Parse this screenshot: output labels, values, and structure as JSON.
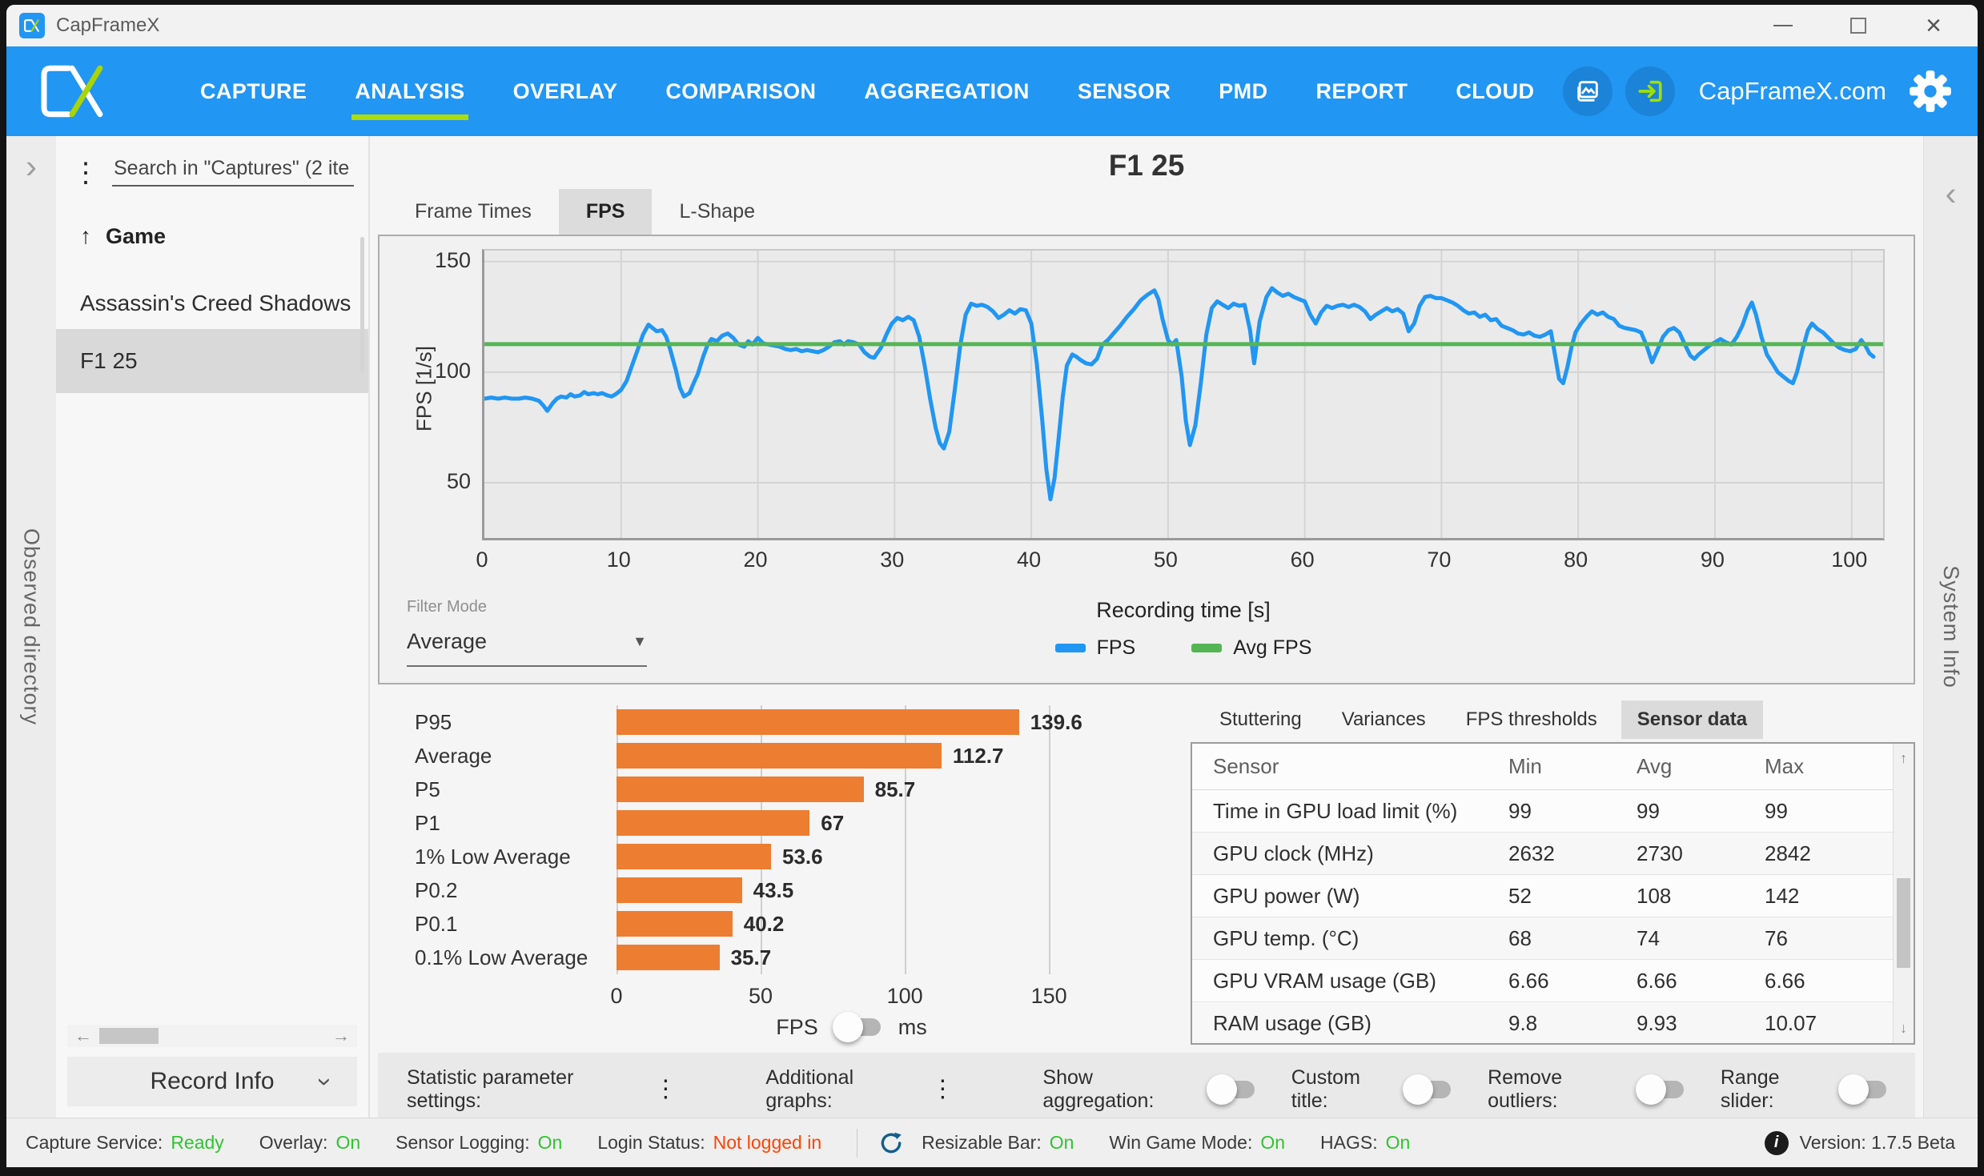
{
  "window": {
    "title": "CapFrameX"
  },
  "nav": {
    "items": [
      "CAPTURE",
      "ANALYSIS",
      "OVERLAY",
      "COMPARISON",
      "AGGREGATION",
      "SENSOR",
      "PMD",
      "REPORT",
      "CLOUD"
    ],
    "active_item": "ANALYSIS",
    "site_label": "CapFrameX.com",
    "bar_color": "#2196F3",
    "accent_green": "#AEDC0A"
  },
  "left_rail": {
    "label": "Observed directory",
    "expander": "›"
  },
  "right_rail": {
    "label": "System Info",
    "collapser": "‹"
  },
  "sidebar": {
    "menu_icon": "⋮",
    "search_placeholder": "Search in \"Captures\" (2 ite",
    "sort_header": {
      "arrow": "↑",
      "label": "Game"
    },
    "items": [
      {
        "label": "Assassin's Creed Shadows",
        "selected": false
      },
      {
        "label": "F1 25",
        "selected": true
      }
    ],
    "hscroll": {
      "left_arrow": "←",
      "right_arrow": "→"
    },
    "record_info_label": "Record Info"
  },
  "main": {
    "title": "F1 25",
    "chart_tabs": [
      {
        "label": "Frame Times",
        "active": false
      },
      {
        "label": "FPS",
        "active": true
      },
      {
        "label": "L-Shape",
        "active": false
      }
    ],
    "filter_mode": {
      "label": "Filter Mode",
      "value": "Average",
      "arrow": "▼"
    }
  },
  "chart_data": [
    {
      "type": "line",
      "title": "F1 25",
      "xlabel": "Recording time [s]",
      "ylabel": "FPS [1/s]",
      "xlim": [
        0,
        102.3
      ],
      "ylim": [
        25,
        155
      ],
      "xticks": [
        0,
        10,
        20,
        30,
        40,
        50,
        60,
        70,
        80,
        90,
        100
      ],
      "yticks": [
        50,
        100,
        150
      ],
      "grid": true,
      "legend_position": "bottom",
      "series": [
        {
          "name": "FPS",
          "color": "#2196F3",
          "x": [
            0,
            0.5,
            1,
            1.5,
            2,
            2.5,
            3,
            3.5,
            4,
            4.3,
            4.6,
            5,
            5.3,
            5.6,
            6,
            6.3,
            6.6,
            7,
            7.3,
            7.6,
            8,
            8.3,
            8.6,
            9,
            9.3,
            9.6,
            10,
            10.4,
            10.8,
            11.2,
            11.6,
            12,
            12.3,
            12.6,
            13,
            13.3,
            13.6,
            14,
            14.3,
            14.6,
            15,
            15.3,
            15.6,
            16,
            16.3,
            16.6,
            17,
            17.4,
            17.8,
            18.2,
            18.6,
            19,
            19.3,
            19.6,
            20,
            20.4,
            20.8,
            21.2,
            21.6,
            22,
            22.4,
            22.8,
            23.2,
            23.6,
            24,
            24.4,
            24.8,
            25.2,
            25.6,
            26,
            26.3,
            26.6,
            27,
            27.4,
            27.8,
            28.2,
            28.5,
            29,
            29.4,
            29.8,
            30.2,
            30.6,
            31,
            31.4,
            31.8,
            32.2,
            32.6,
            33,
            33.3,
            33.6,
            34,
            34.4,
            34.8,
            35.2,
            35.6,
            36,
            36.4,
            36.8,
            37.2,
            37.6,
            38,
            38.4,
            38.8,
            39.2,
            39.6,
            40,
            40.4,
            40.8,
            41.1,
            41.4,
            41.7,
            42,
            42.3,
            42.6,
            43,
            43.3,
            43.6,
            44,
            44.4,
            44.8,
            45.2,
            45.6,
            46,
            46.5,
            47,
            47.5,
            48,
            48.5,
            49,
            49.3,
            49.6,
            50,
            50.3,
            50.6,
            51,
            51.3,
            51.6,
            52,
            52.4,
            52.8,
            53.2,
            53.6,
            54,
            54.4,
            54.8,
            55.2,
            55.6,
            56,
            56.3,
            56.7,
            57.2,
            57.6,
            58,
            58.4,
            58.8,
            59.2,
            59.6,
            60,
            60.4,
            60.8,
            61.2,
            61.6,
            62,
            62.4,
            62.8,
            63.2,
            63.6,
            64,
            64.4,
            64.8,
            65.2,
            65.6,
            66,
            66.4,
            66.8,
            67.2,
            67.6,
            68,
            68.4,
            68.8,
            69.2,
            69.6,
            70,
            70.4,
            70.8,
            71.2,
            71.6,
            72,
            72.4,
            72.8,
            73.2,
            73.6,
            74,
            74.4,
            74.8,
            75.2,
            75.6,
            76,
            76.4,
            76.8,
            77.2,
            77.6,
            78,
            78.3,
            78.6,
            78.9,
            79.2,
            79.5,
            79.8,
            80.2,
            80.6,
            81,
            81.4,
            81.8,
            82.2,
            82.6,
            83,
            83.4,
            83.8,
            84.2,
            84.6,
            85,
            85.4,
            85.8,
            86.2,
            86.6,
            87,
            87.4,
            87.8,
            88.2,
            88.5,
            88.8,
            89.2,
            89.6,
            90,
            90.4,
            90.8,
            91.2,
            91.6,
            92,
            92.4,
            92.7,
            93,
            93.4,
            93.8,
            94.2,
            94.6,
            95,
            95.4,
            95.7,
            96,
            96.4,
            96.8,
            97.1,
            97.5,
            97.9,
            98.3,
            98.7,
            99.1,
            99.5,
            99.9,
            100.3,
            100.7,
            101,
            101.3,
            101.6
          ],
          "y": [
            88,
            88.5,
            88,
            88.5,
            88,
            88,
            88.5,
            88,
            87,
            85,
            82.5,
            86,
            88,
            89,
            88.5,
            90,
            89,
            89.5,
            91,
            90,
            90.5,
            90,
            90.5,
            89.5,
            89,
            90,
            92,
            96,
            103,
            110,
            117,
            121.5,
            120,
            118.5,
            119,
            116,
            110,
            101,
            93,
            89,
            90.5,
            95,
            99,
            107,
            112,
            115,
            114,
            116.5,
            117.5,
            115.5,
            112.5,
            111.5,
            114,
            112.5,
            115.5,
            113,
            112.5,
            112,
            111.5,
            110.5,
            110,
            110.5,
            109.5,
            110,
            109.5,
            109,
            110,
            111.5,
            113.5,
            114,
            112.5,
            114,
            113.5,
            112.5,
            109,
            107,
            106.5,
            111,
            117,
            122,
            124.5,
            123.5,
            125,
            123.5,
            116,
            103,
            88,
            75,
            68,
            65.5,
            73,
            92,
            112,
            126,
            131,
            130,
            130.5,
            129.5,
            127.5,
            124.5,
            126,
            128,
            126.5,
            128.5,
            128,
            122,
            104,
            78,
            56,
            42.5,
            52,
            70,
            89,
            103,
            108,
            107,
            105.5,
            104,
            103.5,
            106,
            112.5,
            114.5,
            117.5,
            121,
            125,
            128.5,
            132.5,
            135,
            137,
            133,
            124,
            114.5,
            112.5,
            114.5,
            98,
            78,
            67,
            76,
            95,
            117,
            129,
            132,
            130.5,
            129,
            131,
            130,
            130.5,
            119,
            104,
            123,
            134,
            138,
            136,
            134.5,
            135.5,
            134,
            133,
            132,
            126,
            122,
            127,
            130,
            129,
            130,
            130.5,
            129.5,
            130.5,
            129.5,
            127.5,
            124,
            126,
            127.5,
            129,
            127.5,
            128.5,
            126.5,
            118.5,
            122,
            130,
            134,
            134.5,
            133.5,
            133.5,
            132.5,
            131.5,
            130,
            128,
            126.5,
            127,
            125,
            126,
            123.5,
            124,
            121,
            120,
            119,
            117.5,
            117,
            118,
            116.5,
            116,
            117,
            118.5,
            108,
            97,
            95,
            102,
            111,
            118,
            122,
            125,
            127.5,
            126,
            127,
            125,
            124,
            121,
            120,
            119.5,
            119,
            118,
            112,
            104.5,
            110,
            116,
            119,
            120,
            118,
            112.5,
            107.5,
            106,
            108,
            110,
            112,
            113.5,
            115,
            113.5,
            112.5,
            116,
            121,
            128,
            131.5,
            126,
            116,
            108,
            104,
            100,
            98,
            96,
            95,
            100,
            110,
            119,
            122,
            119.5,
            118,
            115.5,
            113,
            111,
            110,
            109.5,
            110.5,
            114.5,
            112,
            108.5,
            107
          ]
        },
        {
          "name": "Avg FPS",
          "color": "#55B555",
          "type": "hline",
          "value": 112.7
        }
      ]
    },
    {
      "type": "bar",
      "orientation": "horizontal",
      "categories": [
        "P95",
        "Average",
        "P5",
        "P1",
        "1% Low Average",
        "P0.2",
        "P0.1",
        "0.1% Low Average"
      ],
      "values": [
        139.6,
        112.7,
        85.7,
        67,
        53.6,
        43.5,
        40.2,
        35.7
      ],
      "color": "#ED7D31",
      "xticks": [
        0,
        50,
        100,
        150
      ],
      "xlim": [
        0,
        163
      ],
      "unit_toggle": {
        "options": [
          "FPS",
          "ms"
        ],
        "selected": "FPS"
      }
    }
  ],
  "sensor_panel": {
    "tabs": [
      {
        "label": "Stuttering",
        "active": false
      },
      {
        "label": "Variances",
        "active": false
      },
      {
        "label": "FPS thresholds",
        "active": false
      },
      {
        "label": "Sensor data",
        "active": true
      }
    ],
    "table": {
      "columns": [
        "Sensor",
        "Min",
        "Avg",
        "Max"
      ],
      "rows": [
        [
          "Time in GPU load limit (%)",
          "99",
          "99",
          "99"
        ],
        [
          "GPU clock (MHz)",
          "2632",
          "2730",
          "2842"
        ],
        [
          "GPU power (W)",
          "52",
          "108",
          "142"
        ],
        [
          "GPU temp. (°C)",
          "68",
          "74",
          "76"
        ],
        [
          "GPU VRAM usage (GB)",
          "6.66",
          "6.66",
          "6.66"
        ],
        [
          "RAM usage (GB)",
          "9.8",
          "9.93",
          "10.07"
        ]
      ],
      "scroll_up": "↑",
      "scroll_down": "↓"
    }
  },
  "settings_row": {
    "buttons": [
      {
        "label": "Statistic parameter settings:",
        "icon": "⋮"
      },
      {
        "label": "Additional graphs:",
        "icon": "⋮"
      }
    ],
    "toggles": [
      {
        "label": "Show aggregation:",
        "on": false
      },
      {
        "label": "Custom title:",
        "on": false
      },
      {
        "label": "Remove outliers:",
        "on": false
      },
      {
        "label": "Range slider:",
        "on": false
      }
    ]
  },
  "status_bar": {
    "green": "#2FC42F",
    "red": "#FF4300",
    "left_items": [
      {
        "label": "Capture Service:",
        "value": "Ready",
        "color": "#2FC42F"
      },
      {
        "label": "Overlay:",
        "value": "On",
        "color": "#2FC42F"
      },
      {
        "label": "Sensor Logging:",
        "value": "On",
        "color": "#2FC42F"
      },
      {
        "label": "Login Status:",
        "value": "Not logged in",
        "color": "#FF4300"
      }
    ],
    "right_items": [
      {
        "label": "Resizable Bar:",
        "value": "On",
        "color": "#2FC42F"
      },
      {
        "label": "Win Game Mode:",
        "value": "On",
        "color": "#2FC42F"
      },
      {
        "label": "HAGS:",
        "value": "On",
        "color": "#2FC42F"
      }
    ],
    "version": {
      "label": "Version:",
      "value": "1.7.5 Beta"
    }
  }
}
